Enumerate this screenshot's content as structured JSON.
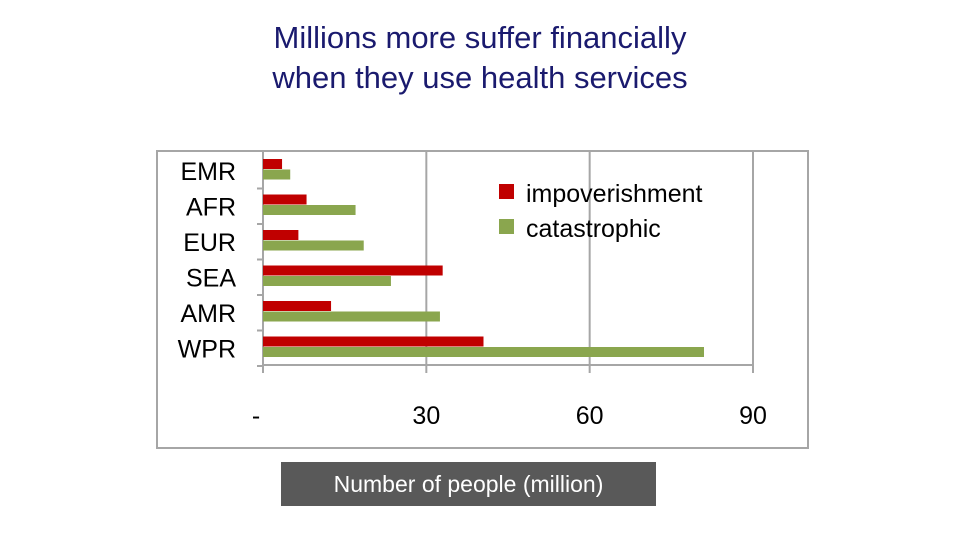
{
  "title_line1": "Millions more suffer financially",
  "title_line2": "when they use health services",
  "chart_data": {
    "type": "bar",
    "orientation": "horizontal",
    "categories": [
      "EMR",
      "AFR",
      "EUR",
      "SEA",
      "AMR",
      "WPR"
    ],
    "series": [
      {
        "name": "impoverishment",
        "color": "#c00000",
        "values": [
          3.5,
          8,
          6.5,
          33,
          12.5,
          40.5
        ]
      },
      {
        "name": "catastrophic",
        "color": "#8aa64e",
        "values": [
          5,
          17,
          18.5,
          23.5,
          32.5,
          81
        ]
      }
    ],
    "xlabel": "Number of people (million)",
    "xlim": [
      0,
      90
    ],
    "xticks": [
      0,
      30,
      60,
      90
    ],
    "xtick_labels": [
      "-",
      "30",
      "60",
      "90"
    ],
    "grid": true,
    "legend_position": "top-right"
  }
}
